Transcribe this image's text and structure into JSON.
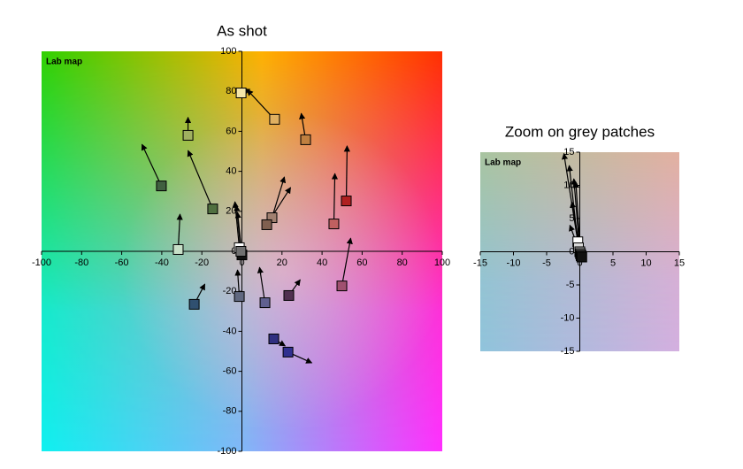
{
  "chart_data": [
    {
      "type": "scatter",
      "title": "As shot",
      "label": "Lab map",
      "xlim": [
        -100,
        100
      ],
      "ylim": [
        -100,
        100
      ],
      "xticks": [
        -100,
        -80,
        -60,
        -40,
        -20,
        0,
        20,
        40,
        60,
        80,
        100
      ],
      "yticks": [
        -100,
        -80,
        -60,
        -40,
        -20,
        0,
        20,
        40,
        60,
        80,
        100
      ],
      "background": "hue",
      "x": [
        16.3,
        -0.4,
        31.8,
        -26.9,
        -40.2,
        -14.6,
        52.1,
        45.9,
        15,
        12.4,
        -31.8,
        49.9,
        -23.8,
        -1.3,
        11.5,
        23.4,
        15.9,
        23,
        -1.3,
        0,
        -0.5
      ],
      "y": [
        66,
        79.2,
        55.8,
        58,
        32.7,
        21.2,
        25.2,
        13.7,
        16.8,
        13.3,
        0.9,
        -17.3,
        -26.5,
        -22.6,
        -25.7,
        -22.1,
        -43.8,
        -50.4,
        1.8,
        -1.8,
        0
      ],
      "target_x": [
        2.6,
        4,
        29.6,
        -26.9,
        -49.9,
        -26.9,
        52.5,
        46.4,
        21.2,
        24.3,
        -30.9,
        54.3,
        -18.5,
        -2.2,
        8.8,
        29.1,
        21.6,
        34.9,
        -3.5,
        -2.2,
        -2.8
      ],
      "target_y": [
        80.8,
        81,
        69,
        67,
        53.5,
        50.4,
        52.7,
        38.9,
        37.2,
        31.9,
        18.6,
        6.6,
        -16.4,
        -9.3,
        -8,
        -14.2,
        -47.3,
        -55.8,
        24.8,
        19.5,
        23
      ],
      "colors": [
        "#e0b060",
        "#f4e6a8",
        "#c08040",
        "#a0b060",
        "#406040",
        "#507040",
        "#b02020",
        "#c06060",
        "#a08070",
        "#806050",
        "#c8e0c8",
        "#a05070",
        "#305070",
        "#606880",
        "#606090",
        "#503050",
        "#303080",
        "#303090",
        "#ffffff",
        "#111111",
        "#707070"
      ]
    },
    {
      "type": "scatter",
      "title": "Zoom on grey patches",
      "label": "Lab map",
      "xlim": [
        -15,
        15
      ],
      "ylim": [
        -15,
        15
      ],
      "xticks": [
        -15,
        -10,
        -5,
        0,
        5,
        10,
        15
      ],
      "yticks": [
        -15,
        -10,
        -5,
        0,
        5,
        10,
        15
      ],
      "background": "muted",
      "x": [
        -0.3,
        -0.2,
        0,
        0.1,
        0.2,
        0.3
      ],
      "y": [
        1.5,
        0.6,
        0,
        -0.3,
        -0.6,
        -0.8
      ],
      "target_x": [
        -2.4,
        -1.6,
        -0.9,
        -0.6,
        -1.2,
        -1.5
      ],
      "target_y": [
        14.8,
        13,
        11,
        10.5,
        7.5,
        4
      ],
      "colors": [
        "#ffffff",
        "#d8d8d8",
        "#a0a0a0",
        "#606060",
        "#303030",
        "#111111"
      ]
    }
  ]
}
